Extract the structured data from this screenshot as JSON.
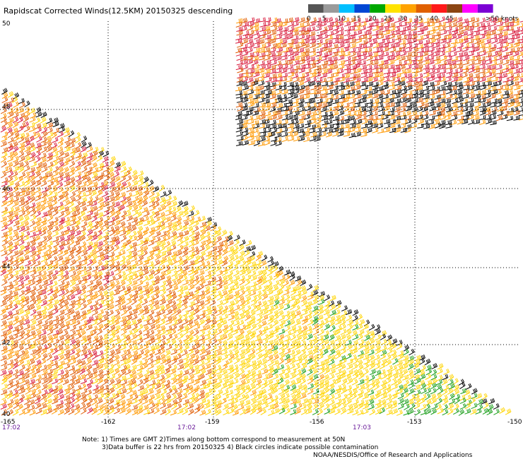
{
  "title": "Rapidscat Corrected Winds(12.5KM) 20150325 descending",
  "legend": {
    "bins": [
      {
        "label": "0",
        "color": "#555555"
      },
      {
        "label": "5",
        "color": "#9a9a9a"
      },
      {
        "label": "10",
        "color": "#00bfff"
      },
      {
        "label": "15",
        "color": "#0047d4"
      },
      {
        "label": "20",
        "color": "#00a800"
      },
      {
        "label": "25",
        "color": "#ffe300"
      },
      {
        "label": "30",
        "color": "#ffa200"
      },
      {
        "label": "35",
        "color": "#e06000"
      },
      {
        "label": "40",
        "color": "#ff1a1a"
      },
      {
        "label": "45",
        "color": "#8b4513"
      },
      {
        "label": ">50 knots",
        "color": "#ff00ff"
      }
    ],
    "last_color": "#7b00d4"
  },
  "map": {
    "lat_labels": [
      "50",
      "48",
      "46",
      "44",
      "42",
      "40"
    ],
    "lon_labels": [
      "-165",
      "-162",
      "-159",
      "-156",
      "-153",
      "-150"
    ],
    "time_labels": [
      "17:02",
      "17:02",
      "17:03"
    ]
  },
  "notes": {
    "line1": "Note: 1) Times are GMT 2)Times along bottom correspond to measurement at 50N",
    "line2": "3)Data buffer is 22 hrs from 20150325 4) Black circles indicate possible contamination",
    "line3": "NOAA/NESDIS/Office of Research and Applications"
  },
  "colors": {
    "black": "#000000",
    "green": "#1a9e1a",
    "yellow": "#ffd400",
    "orange": "#ff9800",
    "dark_orange": "#e05a00",
    "red": "#d81b3c"
  }
}
